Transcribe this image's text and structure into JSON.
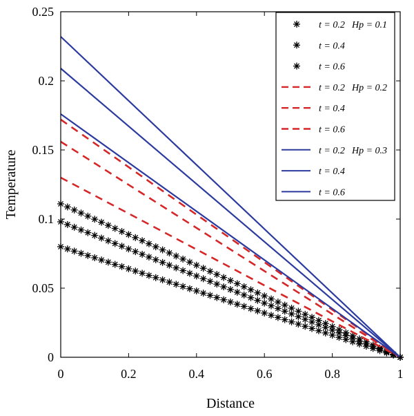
{
  "chart_data": {
    "type": "line",
    "xlabel": "Distance",
    "ylabel": "Temperature",
    "xlim": [
      0,
      1
    ],
    "ylim": [
      0,
      0.25
    ],
    "xticks": [
      "0",
      "0.2",
      "0.4",
      "0.6",
      "0.8",
      "1"
    ],
    "yticks": [
      "0",
      "0.05",
      "0.1",
      "0.15",
      "0.2",
      "0.25"
    ],
    "grid": false,
    "legend_position": "top-right",
    "series": [
      {
        "name": "t = 0.2 Hp = 0.1",
        "legend_t": "t = 0.2",
        "legend_hp": "Hp = 0.1",
        "style": "star",
        "color": "#000000",
        "x": [
          0,
          1
        ],
        "y": [
          0.111,
          0
        ]
      },
      {
        "name": "t = 0.4",
        "legend_t": "t = 0.4",
        "legend_hp": "",
        "style": "star",
        "color": "#000000",
        "x": [
          0,
          1
        ],
        "y": [
          0.098,
          0
        ]
      },
      {
        "name": "t = 0.6",
        "legend_t": "t = 0.6",
        "legend_hp": "",
        "style": "star",
        "color": "#000000",
        "x": [
          0,
          1
        ],
        "y": [
          0.08,
          0
        ]
      },
      {
        "name": "t = 0.2 Hp = 0.2",
        "legend_t": "t = 0.2",
        "legend_hp": "Hp = 0.2",
        "style": "dashed",
        "color": "#d62728",
        "x": [
          0,
          1
        ],
        "y": [
          0.172,
          0
        ]
      },
      {
        "name": "t = 0.4",
        "legend_t": "t = 0.4",
        "legend_hp": "",
        "style": "dashed",
        "color": "#d62728",
        "x": [
          0,
          1
        ],
        "y": [
          0.156,
          0
        ]
      },
      {
        "name": "t = 0.6",
        "legend_t": "t = 0.6",
        "legend_hp": "",
        "style": "dashed",
        "color": "#d62728",
        "x": [
          0,
          1
        ],
        "y": [
          0.13,
          0
        ]
      },
      {
        "name": "t = 0.2 Hp = 0.3",
        "legend_t": "t = 0.2",
        "legend_hp": "Hp = 0.3",
        "style": "solid",
        "color": "#2b3a9e",
        "x": [
          0,
          1
        ],
        "y": [
          0.232,
          0
        ]
      },
      {
        "name": "t = 0.4",
        "legend_t": "t = 0.4",
        "legend_hp": "",
        "style": "solid",
        "color": "#2b3a9e",
        "x": [
          0,
          1
        ],
        "y": [
          0.209,
          0
        ]
      },
      {
        "name": "t = 0.6",
        "legend_t": "t = 0.6",
        "legend_hp": "",
        "style": "solid",
        "color": "#2b3a9e",
        "x": [
          0,
          1
        ],
        "y": [
          0.176,
          0
        ]
      }
    ]
  }
}
